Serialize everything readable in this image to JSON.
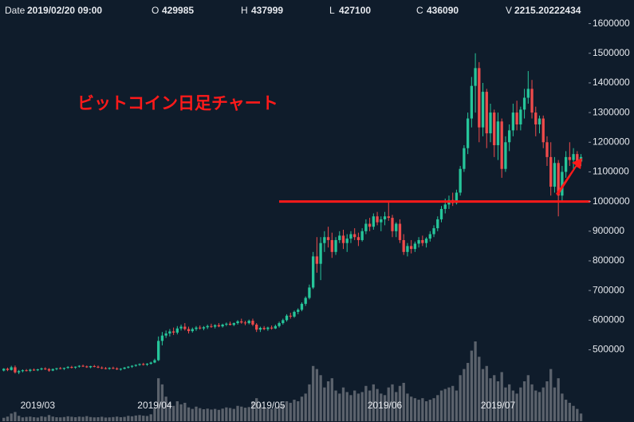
{
  "chart_data": {
    "type": "candlestick",
    "title": "ビットコイン日足チャート",
    "header": {
      "date_label": "Date",
      "date": "2019/02/20 09:00",
      "open_label": "O",
      "high_label": "H",
      "low_label": "L",
      "close_label": "C",
      "volume_label": "V"
    },
    "up_color": "#26c59a",
    "down_color": "#ef4b4b",
    "volume_color": "#5b626c",
    "hline": {
      "value": 1000000,
      "color": "#ff1a1a"
    },
    "xlim": [
      -1,
      155
    ],
    "xticks": [
      {
        "value": 9,
        "label": "2019/03"
      },
      {
        "value": 40,
        "label": "2019/04"
      },
      {
        "value": 70,
        "label": "2019/05"
      },
      {
        "value": 101,
        "label": "2019/06"
      },
      {
        "value": 131,
        "label": "2019/07"
      }
    ],
    "ylim": [
      270000,
      1650000
    ],
    "yticks": [
      500000,
      600000,
      700000,
      800000,
      900000,
      1000000,
      1100000,
      1200000,
      1300000,
      1400000,
      1500000,
      1600000
    ],
    "candles": [
      [
        429985,
        437999,
        427100,
        436090
      ],
      [
        436000,
        440000,
        428000,
        432000
      ],
      [
        432000,
        446000,
        430000,
        441000
      ],
      [
        441000,
        447000,
        420000,
        424000
      ],
      [
        424000,
        432000,
        418000,
        428000
      ],
      [
        428000,
        434000,
        424000,
        431000
      ],
      [
        431000,
        435000,
        427000,
        429000
      ],
      [
        429000,
        436000,
        425000,
        433000
      ],
      [
        433000,
        437000,
        429000,
        431000
      ],
      [
        431000,
        436000,
        428000,
        434000
      ],
      [
        434000,
        440000,
        431000,
        437000
      ],
      [
        437000,
        441000,
        432000,
        435000
      ],
      [
        435000,
        438000,
        426000,
        430000
      ],
      [
        430000,
        437000,
        428000,
        435000
      ],
      [
        435000,
        439000,
        431000,
        438000
      ],
      [
        438000,
        442000,
        434000,
        436000
      ],
      [
        436000,
        440000,
        432000,
        439000
      ],
      [
        439000,
        445000,
        436000,
        442000
      ],
      [
        442000,
        446000,
        437000,
        440000
      ],
      [
        440000,
        444000,
        436000,
        443000
      ],
      [
        443000,
        448000,
        440000,
        446000
      ],
      [
        446000,
        450000,
        442000,
        444000
      ],
      [
        444000,
        447000,
        439000,
        441000
      ],
      [
        441000,
        446000,
        438000,
        445000
      ],
      [
        445000,
        449000,
        441000,
        443000
      ],
      [
        443000,
        447000,
        438000,
        440000
      ],
      [
        440000,
        444000,
        435000,
        438000
      ],
      [
        438000,
        442000,
        434000,
        436000
      ],
      [
        436000,
        441000,
        433000,
        439000
      ],
      [
        439000,
        443000,
        435000,
        437000
      ],
      [
        437000,
        441000,
        432000,
        434000
      ],
      [
        434000,
        438000,
        430000,
        436000
      ],
      [
        436000,
        442000,
        434000,
        440000
      ],
      [
        440000,
        445000,
        437000,
        443000
      ],
      [
        443000,
        448000,
        439000,
        446000
      ],
      [
        446000,
        451000,
        443000,
        449000
      ],
      [
        449000,
        454000,
        446000,
        452000
      ],
      [
        452000,
        456000,
        447000,
        450000
      ],
      [
        450000,
        455000,
        446000,
        453000
      ],
      [
        453000,
        460000,
        450000,
        457000
      ],
      [
        457000,
        470000,
        455000,
        465000
      ],
      [
        465000,
        545000,
        462000,
        530000
      ],
      [
        530000,
        560000,
        515000,
        548000
      ],
      [
        548000,
        565000,
        540000,
        555000
      ],
      [
        555000,
        570000,
        545000,
        562000
      ],
      [
        562000,
        575000,
        550000,
        558000
      ],
      [
        558000,
        580000,
        552000,
        572000
      ],
      [
        572000,
        585000,
        565000,
        578000
      ],
      [
        578000,
        590000,
        565000,
        570000
      ],
      [
        570000,
        578000,
        555000,
        563000
      ],
      [
        563000,
        575000,
        558000,
        570000
      ],
      [
        570000,
        580000,
        564000,
        575000
      ],
      [
        575000,
        582000,
        568000,
        572000
      ],
      [
        572000,
        580000,
        566000,
        576000
      ],
      [
        576000,
        585000,
        570000,
        580000
      ],
      [
        580000,
        588000,
        574000,
        578000
      ],
      [
        578000,
        586000,
        572000,
        583000
      ],
      [
        583000,
        590000,
        576000,
        579000
      ],
      [
        579000,
        588000,
        575000,
        585000
      ],
      [
        585000,
        592000,
        580000,
        588000
      ],
      [
        588000,
        595000,
        582000,
        584000
      ],
      [
        584000,
        592000,
        580000,
        590000
      ],
      [
        590000,
        600000,
        585000,
        596000
      ],
      [
        596000,
        605000,
        588000,
        592000
      ],
      [
        592000,
        598000,
        583000,
        590000
      ],
      [
        590000,
        602000,
        586000,
        598000
      ],
      [
        598000,
        605000,
        580000,
        585000
      ],
      [
        585000,
        590000,
        560000,
        568000
      ],
      [
        568000,
        578000,
        560000,
        574000
      ],
      [
        574000,
        580000,
        566000,
        570000
      ],
      [
        570000,
        578000,
        564000,
        575000
      ],
      [
        575000,
        582000,
        568000,
        572000
      ],
      [
        572000,
        585000,
        570000,
        580000
      ],
      [
        580000,
        595000,
        575000,
        590000
      ],
      [
        590000,
        605000,
        585000,
        600000
      ],
      [
        600000,
        620000,
        595000,
        615000
      ],
      [
        615000,
        625000,
        605000,
        612000
      ],
      [
        612000,
        632000,
        608000,
        628000
      ],
      [
        628000,
        640000,
        620000,
        635000
      ],
      [
        635000,
        660000,
        630000,
        655000
      ],
      [
        655000,
        680000,
        648000,
        675000
      ],
      [
        675000,
        720000,
        670000,
        710000
      ],
      [
        710000,
        830000,
        705000,
        815000
      ],
      [
        815000,
        880000,
        760000,
        790000
      ],
      [
        790000,
        880000,
        735000,
        860000
      ],
      [
        860000,
        900000,
        830000,
        880000
      ],
      [
        880000,
        915000,
        845000,
        870000
      ],
      [
        870000,
        895000,
        810000,
        830000
      ],
      [
        830000,
        880000,
        820000,
        870000
      ],
      [
        870000,
        900000,
        860000,
        885000
      ],
      [
        885000,
        905000,
        840000,
        860000
      ],
      [
        860000,
        890000,
        830000,
        875000
      ],
      [
        875000,
        900000,
        860000,
        890000
      ],
      [
        890000,
        910000,
        870000,
        880000
      ],
      [
        880000,
        895000,
        850000,
        870000
      ],
      [
        870000,
        910000,
        865000,
        900000
      ],
      [
        900000,
        940000,
        890000,
        925000
      ],
      [
        925000,
        945000,
        900000,
        915000
      ],
      [
        915000,
        960000,
        905000,
        950000
      ],
      [
        950000,
        965000,
        920000,
        930000
      ],
      [
        930000,
        950000,
        900000,
        940000
      ],
      [
        940000,
        965000,
        920000,
        950000
      ],
      [
        950000,
        1000000,
        935000,
        945000
      ],
      [
        945000,
        955000,
        880000,
        900000
      ],
      [
        900000,
        930000,
        880000,
        925000
      ],
      [
        925000,
        940000,
        860000,
        870000
      ],
      [
        870000,
        890000,
        820000,
        830000
      ],
      [
        830000,
        860000,
        815000,
        850000
      ],
      [
        850000,
        870000,
        825000,
        840000
      ],
      [
        840000,
        865000,
        830000,
        858000
      ],
      [
        858000,
        880000,
        845000,
        870000
      ],
      [
        870000,
        885000,
        850000,
        860000
      ],
      [
        860000,
        880000,
        845000,
        875000
      ],
      [
        875000,
        900000,
        865000,
        890000
      ],
      [
        890000,
        920000,
        880000,
        910000
      ],
      [
        910000,
        950000,
        900000,
        940000
      ],
      [
        940000,
        985000,
        930000,
        975000
      ],
      [
        975000,
        1010000,
        960000,
        990000
      ],
      [
        990000,
        1020000,
        975000,
        1005000
      ],
      [
        1005000,
        1030000,
        985000,
        995000
      ],
      [
        995000,
        1040000,
        990000,
        1030000
      ],
      [
        1030000,
        1120000,
        1020000,
        1110000
      ],
      [
        1110000,
        1190000,
        1100000,
        1180000
      ],
      [
        1180000,
        1300000,
        1160000,
        1280000
      ],
      [
        1280000,
        1420000,
        1250000,
        1390000
      ],
      [
        1390000,
        1500000,
        1300000,
        1450000
      ],
      [
        1450000,
        1470000,
        1200000,
        1250000
      ],
      [
        1250000,
        1400000,
        1220000,
        1370000
      ],
      [
        1370000,
        1380000,
        1180000,
        1230000
      ],
      [
        1230000,
        1330000,
        1200000,
        1300000
      ],
      [
        1300000,
        1310000,
        1150000,
        1190000
      ],
      [
        1190000,
        1300000,
        1140000,
        1270000
      ],
      [
        1270000,
        1280000,
        1080000,
        1110000
      ],
      [
        1110000,
        1220000,
        1100000,
        1200000
      ],
      [
        1200000,
        1260000,
        1170000,
        1240000
      ],
      [
        1240000,
        1330000,
        1220000,
        1300000
      ],
      [
        1300000,
        1340000,
        1240000,
        1260000
      ],
      [
        1260000,
        1320000,
        1240000,
        1310000
      ],
      [
        1310000,
        1380000,
        1280000,
        1350000
      ],
      [
        1350000,
        1440000,
        1330000,
        1380000
      ],
      [
        1380000,
        1410000,
        1280000,
        1300000
      ],
      [
        1300000,
        1320000,
        1220000,
        1260000
      ],
      [
        1260000,
        1290000,
        1230000,
        1280000
      ],
      [
        1280000,
        1290000,
        1180000,
        1200000
      ],
      [
        1200000,
        1220000,
        1120000,
        1150000
      ],
      [
        1150000,
        1200000,
        1020000,
        1050000
      ],
      [
        1050000,
        1150000,
        1030000,
        1130000
      ],
      [
        1130000,
        1140000,
        950000,
        1020000
      ],
      [
        1020000,
        1120000,
        1000000,
        1100000
      ],
      [
        1100000,
        1170000,
        1080000,
        1150000
      ],
      [
        1150000,
        1200000,
        1120000,
        1140000
      ],
      [
        1140000,
        1180000,
        1110000,
        1160000
      ],
      [
        1160000,
        1170000,
        1120000,
        1135000
      ],
      [
        1135000,
        1160000,
        1120000,
        1150000
      ]
    ],
    "volumes": [
      2215.20222434,
      3000,
      5000,
      6000,
      3500,
      2500,
      2800,
      3000,
      2600,
      2400,
      3200,
      2800,
      4000,
      3000,
      2600,
      2500,
      2700,
      3200,
      2900,
      2600,
      3000,
      2800,
      3300,
      2700,
      2500,
      2600,
      2900,
      2400,
      2500,
      2700,
      3000,
      2600,
      2800,
      3500,
      3200,
      3700,
      4000,
      3600,
      3400,
      4500,
      9000,
      28000,
      24000,
      16000,
      12000,
      10000,
      13000,
      11000,
      12000,
      9000,
      8000,
      9500,
      8500,
      7800,
      8200,
      7600,
      8000,
      7400,
      8200,
      9000,
      8600,
      8000,
      10000,
      9500,
      8800,
      9200,
      13000,
      15000,
      11000,
      9000,
      8500,
      8000,
      9000,
      10000,
      11000,
      13000,
      12000,
      14000,
      13000,
      16000,
      18000,
      24000,
      36000,
      34000,
      30000,
      22000,
      26000,
      28000,
      20000,
      18000,
      22000,
      19000,
      17000,
      20000,
      18000,
      19000,
      23000,
      20000,
      24000,
      21000,
      18000,
      17000,
      22000,
      24000,
      19000,
      23000,
      25000,
      18000,
      16000,
      15000,
      14000,
      15000,
      13000,
      14000,
      15000,
      17000,
      20000,
      21000,
      22000,
      23000,
      20000,
      30000,
      34000,
      38000,
      46000,
      52000,
      42000,
      34000,
      36000,
      28000,
      30000,
      26000,
      32000,
      22000,
      24000,
      20000,
      18000,
      22000,
      26000,
      30000,
      24000,
      20000,
      19000,
      22000,
      26000,
      34000,
      22000,
      28000,
      18000,
      14000,
      12000,
      10000,
      8000,
      5000
    ]
  }
}
